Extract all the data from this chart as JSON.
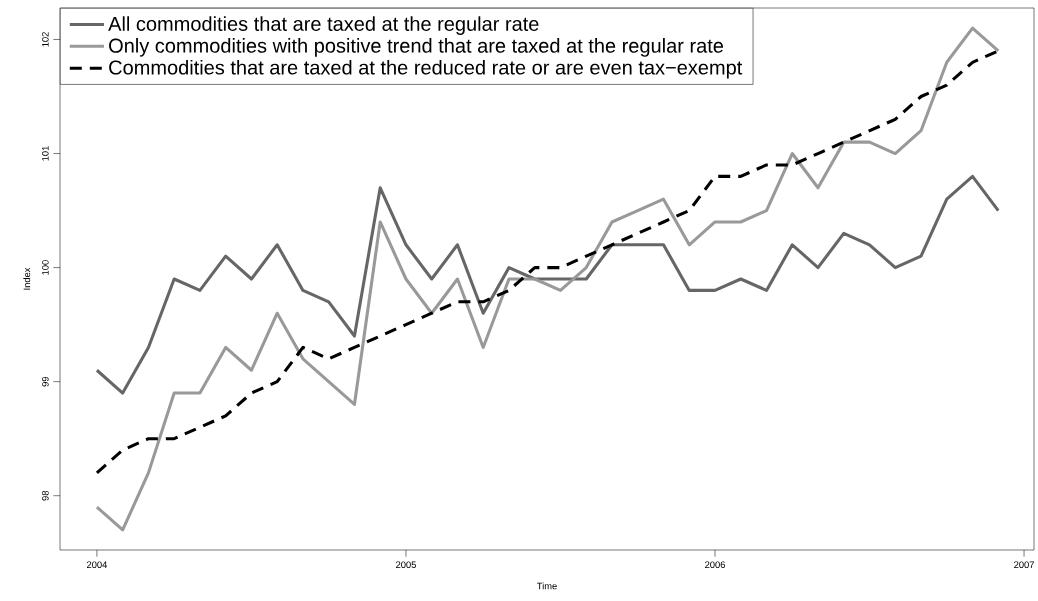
{
  "chart_data": {
    "type": "line",
    "xlabel": "Time",
    "ylabel": "Index",
    "x": [
      "2004-01",
      "2004-02",
      "2004-03",
      "2004-04",
      "2004-05",
      "2004-06",
      "2004-07",
      "2004-08",
      "2004-09",
      "2004-10",
      "2004-11",
      "2004-12",
      "2005-01",
      "2005-02",
      "2005-03",
      "2005-04",
      "2005-05",
      "2005-06",
      "2005-07",
      "2005-08",
      "2005-09",
      "2005-10",
      "2005-11",
      "2005-12",
      "2006-01",
      "2006-02",
      "2006-03",
      "2006-04",
      "2006-05",
      "2006-06",
      "2006-07",
      "2006-08",
      "2006-09",
      "2006-10",
      "2006-11",
      "2006-12"
    ],
    "series": [
      {
        "name": "All commodities that are taxed at the regular rate",
        "color": "#666666",
        "line_style": "solid",
        "values": [
          99.1,
          98.9,
          99.3,
          99.9,
          99.8,
          100.1,
          99.9,
          100.2,
          99.8,
          99.7,
          99.4,
          100.7,
          100.2,
          99.9,
          100.2,
          99.6,
          100.0,
          99.9,
          99.9,
          99.9,
          100.2,
          100.2,
          100.2,
          99.8,
          99.8,
          99.9,
          99.8,
          100.2,
          100.0,
          100.3,
          100.2,
          100.0,
          100.1,
          100.6,
          100.8,
          100.5
        ]
      },
      {
        "name": "Only commodities with positive trend that are taxed at the regular rate",
        "color": "#999999",
        "line_style": "solid",
        "values": [
          97.9,
          97.7,
          98.2,
          98.9,
          98.9,
          99.3,
          99.1,
          99.6,
          99.2,
          99.0,
          98.8,
          100.4,
          99.9,
          99.6,
          99.9,
          99.3,
          99.9,
          99.9,
          99.8,
          100.0,
          100.4,
          100.5,
          100.6,
          100.2,
          100.4,
          100.4,
          100.5,
          101.0,
          100.7,
          101.1,
          101.1,
          101.0,
          101.2,
          101.8,
          102.1,
          101.9
        ]
      },
      {
        "name": "Commodities that are taxed at the reduced rate or are even tax−exempt",
        "color": "#000000",
        "line_style": "dashed",
        "values": [
          98.2,
          98.4,
          98.5,
          98.5,
          98.6,
          98.7,
          98.9,
          99.0,
          99.3,
          99.2,
          99.3,
          99.4,
          99.5,
          99.6,
          99.7,
          99.7,
          99.8,
          100.0,
          100.0,
          100.1,
          100.2,
          100.3,
          100.4,
          100.5,
          100.8,
          100.8,
          100.9,
          100.9,
          101.0,
          101.1,
          101.2,
          101.3,
          101.5,
          101.6,
          101.8,
          101.9
        ]
      }
    ],
    "xlim": [
      "2003-11-18",
      "2007-01-13"
    ],
    "xticks": [
      "2004",
      "2005",
      "2006",
      "2007"
    ],
    "ylim": [
      97.524,
      102.276
    ],
    "yticks": [
      98,
      99,
      100,
      101,
      102
    ],
    "grid": false,
    "legend": "top left"
  }
}
